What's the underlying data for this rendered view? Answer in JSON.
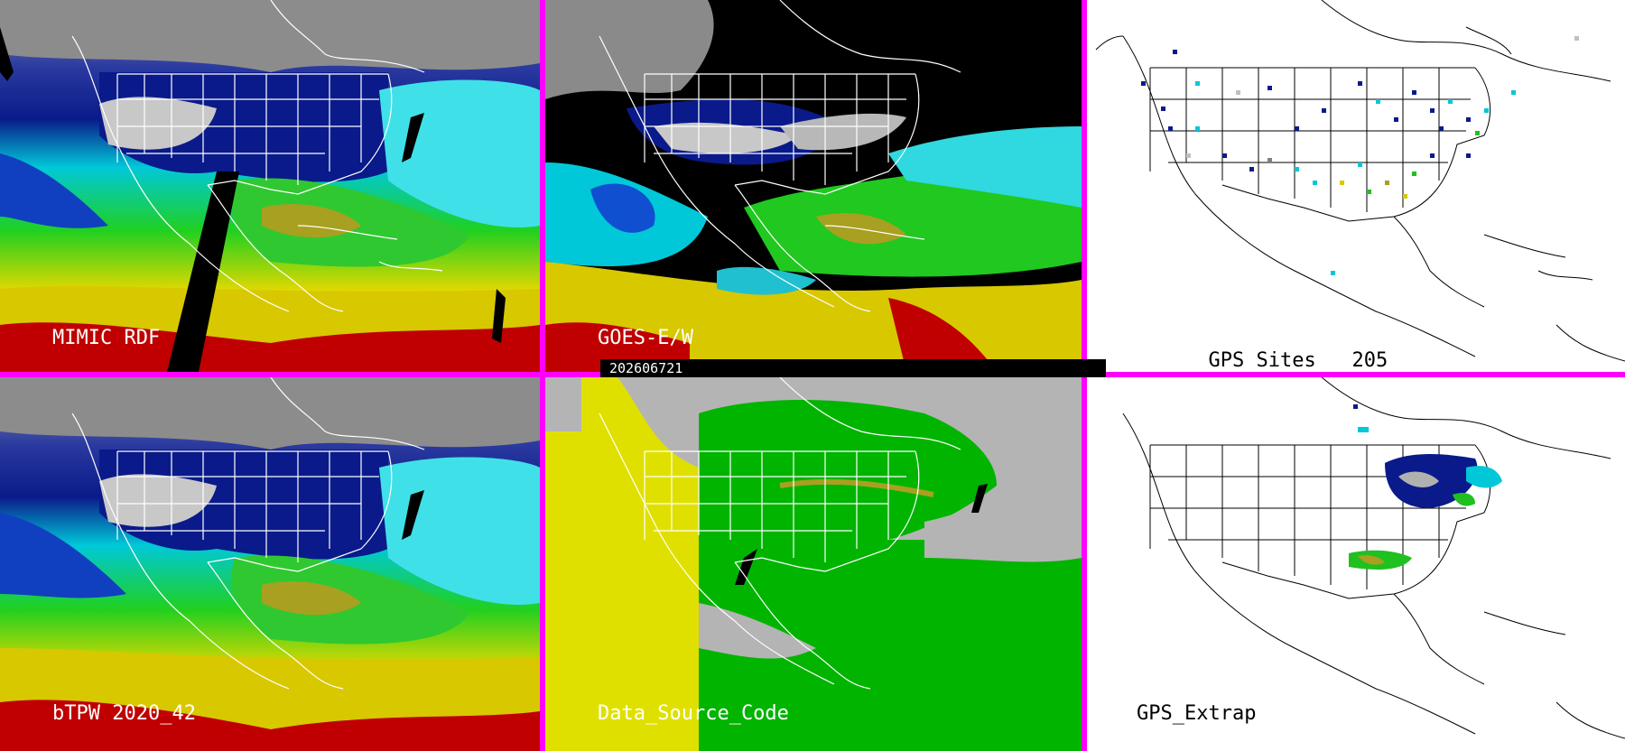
{
  "panels": {
    "mimic": {
      "label": "MIMIC RDF"
    },
    "goes": {
      "label": "GOES-E/W",
      "timestamp": "202606721"
    },
    "gps_sites": {
      "label": "GPS Sites",
      "count": "205"
    },
    "btpw": {
      "label": "bTPW 2020_42"
    },
    "data_source": {
      "label": "Data_Source_Code"
    },
    "gps_extrap": {
      "label": "GPS_Extrap"
    }
  },
  "colors": {
    "divider": "#ff00ff",
    "dry": "#bdbdbd",
    "moist_low": "#0a1a8a",
    "moist_mid": "#00d8e6",
    "moist_high": "#00c800",
    "very_moist": "#e6d800",
    "extreme": "#c80000",
    "source_yellow": "#e0e000",
    "source_green": "#00b400",
    "source_gray": "#b4b4b4"
  }
}
